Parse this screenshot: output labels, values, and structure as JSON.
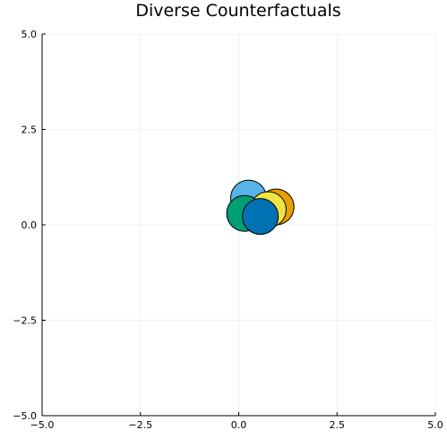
{
  "chart_data": {
    "type": "scatter",
    "title": "Diverse Counterfactuals",
    "xlabel": "",
    "ylabel": "",
    "xlim": [
      -5,
      5
    ],
    "ylim": [
      -5,
      5
    ],
    "x_ticks": [
      -5,
      -2.5,
      0,
      2.5,
      5
    ],
    "y_ticks": [
      -5,
      -2.5,
      0,
      2.5,
      5
    ],
    "x_tick_labels": [
      "−5.0",
      "−2.5",
      "0.0",
      "2.5",
      "5.0"
    ],
    "y_tick_labels": [
      "−5.0",
      "−2.5",
      "0.0",
      "2.5",
      "5.0"
    ],
    "grid": true,
    "legend": "none",
    "series": [
      {
        "x": [
          0.25
        ],
        "y": [
          0.7
        ],
        "color": "#56B4E9"
      },
      {
        "x": [
          0.95
        ],
        "y": [
          0.47
        ],
        "color": "#E69F00"
      },
      {
        "x": [
          0.75
        ],
        "y": [
          0.4
        ],
        "color": "#F0E442"
      },
      {
        "x": [
          0.15
        ],
        "y": [
          0.3
        ],
        "color": "#009E73"
      },
      {
        "x": [
          0.55
        ],
        "y": [
          0.22
        ],
        "color": "#0072B2"
      }
    ]
  }
}
